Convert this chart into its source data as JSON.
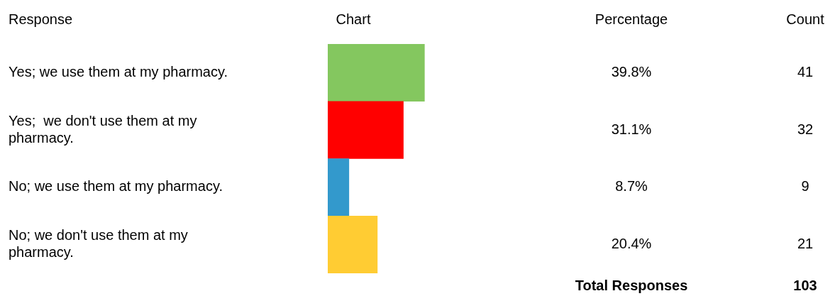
{
  "chart_data": {
    "type": "bar",
    "orientation": "horizontal",
    "categories": [
      "Yes; we use them at my pharmacy.",
      "Yes;  we don't use them at my pharmacy.",
      "No; we use them at my pharmacy.",
      "No; we don't use them at my pharmacy."
    ],
    "values": [
      39.8,
      31.1,
      8.7,
      20.4
    ],
    "colors": [
      "#84c75f",
      "#ff0000",
      "#3399cc",
      "#ffcc33"
    ],
    "value_labels": [
      "39.8%",
      "31.1%",
      "8.7%",
      "20.4%"
    ],
    "tick_labels": "y",
    "grid": false,
    "legend": false,
    "annotations": [
      "Response",
      "Chart",
      "Percentage",
      "Count",
      "41",
      "32",
      "9",
      "21",
      "Total Responses",
      "103"
    ]
  }
}
